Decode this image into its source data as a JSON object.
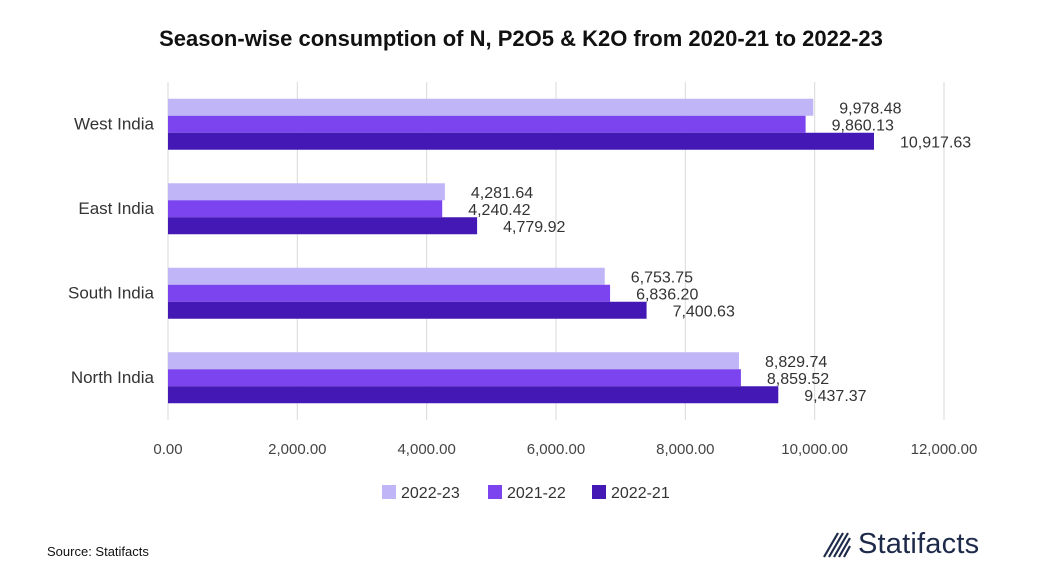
{
  "chart_data": {
    "type": "bar",
    "orientation": "horizontal",
    "title": "Season-wise consumption of N, P2O5 & K2O from 2020-21 to 2022-23",
    "categories": [
      "West India",
      "East India",
      "South India",
      "North India"
    ],
    "series": [
      {
        "name": "2022-23",
        "color": "#c0b6f7",
        "values": [
          9978.48,
          4281.64,
          6753.75,
          8829.74
        ],
        "labels": [
          "9,978.48",
          "4,281.64",
          "6,753.75",
          "8,829.74"
        ]
      },
      {
        "name": "2021-22",
        "color": "#7b44ee",
        "values": [
          9860.13,
          4240.42,
          6836.2,
          8859.52
        ],
        "labels": [
          "9,860.13",
          "4,240.42",
          "6,836.20",
          "8,859.52"
        ]
      },
      {
        "name": "2022-21",
        "color": "#4318b4",
        "values": [
          10917.63,
          4779.92,
          7400.63,
          9437.37
        ],
        "labels": [
          "10,917.63",
          "4,779.92",
          "7,400.63",
          "9,437.37"
        ]
      }
    ],
    "xlim": [
      0,
      12000
    ],
    "x_ticks": [
      "0.00",
      "2,000.00",
      "4,000.00",
      "6,000.00",
      "8,000.00",
      "10,000.00",
      "12,000.00"
    ],
    "grid": "vertical",
    "legend": "bottom"
  },
  "footer": {
    "source": "Source: Statifacts",
    "brand": "Statifacts"
  }
}
